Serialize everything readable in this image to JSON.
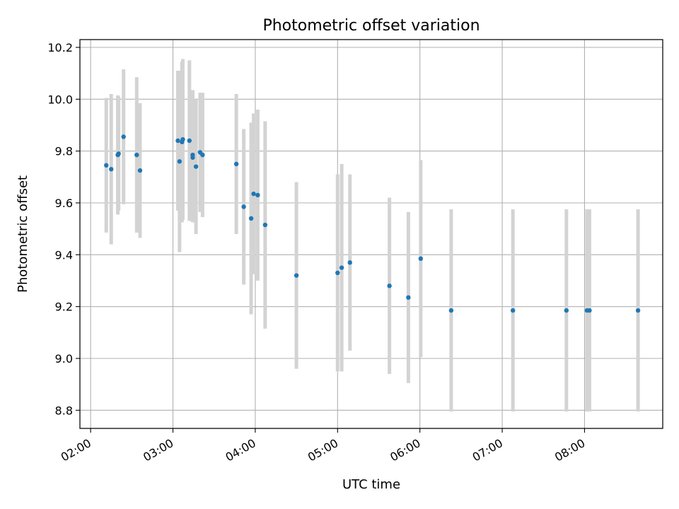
{
  "chart_data": {
    "type": "scatter",
    "title": "Photometric offset variation",
    "xlabel": "UTC time",
    "ylabel": "Photometric offset",
    "x_unit": "hours UTC",
    "xlim": [
      1.87,
      8.95
    ],
    "ylim": [
      8.73,
      10.23
    ],
    "grid": true,
    "x_ticks": [
      {
        "value": 2,
        "label": "02:00"
      },
      {
        "value": 3,
        "label": "03:00"
      },
      {
        "value": 4,
        "label": "04:00"
      },
      {
        "value": 5,
        "label": "05:00"
      },
      {
        "value": 6,
        "label": "06:00"
      },
      {
        "value": 7,
        "label": "07:00"
      },
      {
        "value": 8,
        "label": "08:00"
      }
    ],
    "y_ticks": [
      {
        "value": 8.8,
        "label": "8.8"
      },
      {
        "value": 9.0,
        "label": "9.0"
      },
      {
        "value": 9.2,
        "label": "9.2"
      },
      {
        "value": 9.4,
        "label": "9.4"
      },
      {
        "value": 9.6,
        "label": "9.6"
      },
      {
        "value": 9.8,
        "label": "9.8"
      },
      {
        "value": 10.0,
        "label": "10.0"
      },
      {
        "value": 10.2,
        "label": "10.2"
      }
    ],
    "point_color": "#1f77b4",
    "errorbar_color": "#d3d3d3",
    "points": [
      {
        "x": 2.19,
        "y": 9.745,
        "yerr": 0.26
      },
      {
        "x": 2.25,
        "y": 9.73,
        "yerr": 0.29
      },
      {
        "x": 2.33,
        "y": 9.785,
        "yerr": 0.23
      },
      {
        "x": 2.34,
        "y": 9.79,
        "yerr": 0.22
      },
      {
        "x": 2.4,
        "y": 9.855,
        "yerr": 0.26
      },
      {
        "x": 2.56,
        "y": 9.785,
        "yerr": 0.3
      },
      {
        "x": 2.6,
        "y": 9.725,
        "yerr": 0.26
      },
      {
        "x": 3.06,
        "y": 9.84,
        "yerr": 0.27
      },
      {
        "x": 3.08,
        "y": 9.76,
        "yerr": 0.35
      },
      {
        "x": 3.11,
        "y": 9.835,
        "yerr": 0.31
      },
      {
        "x": 3.12,
        "y": 9.845,
        "yerr": 0.31
      },
      {
        "x": 3.2,
        "y": 9.84,
        "yerr": 0.31
      },
      {
        "x": 3.24,
        "y": 9.785,
        "yerr": 0.25
      },
      {
        "x": 3.24,
        "y": 9.775,
        "yerr": 0.25
      },
      {
        "x": 3.28,
        "y": 9.74,
        "yerr": 0.26
      },
      {
        "x": 3.33,
        "y": 9.795,
        "yerr": 0.23
      },
      {
        "x": 3.36,
        "y": 9.785,
        "yerr": 0.24
      },
      {
        "x": 3.77,
        "y": 9.75,
        "yerr": 0.27
      },
      {
        "x": 3.86,
        "y": 9.585,
        "yerr": 0.3
      },
      {
        "x": 3.95,
        "y": 9.54,
        "yerr": 0.37
      },
      {
        "x": 3.98,
        "y": 9.635,
        "yerr": 0.31
      },
      {
        "x": 4.03,
        "y": 9.63,
        "yerr": 0.33
      },
      {
        "x": 4.12,
        "y": 9.515,
        "yerr": 0.4
      },
      {
        "x": 4.5,
        "y": 9.32,
        "yerr": 0.36
      },
      {
        "x": 5.0,
        "y": 9.33,
        "yerr": 0.38
      },
      {
        "x": 5.05,
        "y": 9.35,
        "yerr": 0.4
      },
      {
        "x": 5.15,
        "y": 9.37,
        "yerr": 0.34
      },
      {
        "x": 5.63,
        "y": 9.28,
        "yerr": 0.34
      },
      {
        "x": 5.86,
        "y": 9.235,
        "yerr": 0.33
      },
      {
        "x": 6.01,
        "y": 9.385,
        "yerr": 0.38
      },
      {
        "x": 6.38,
        "y": 9.185,
        "yerr": 0.39
      },
      {
        "x": 7.13,
        "y": 9.185,
        "yerr": 0.39
      },
      {
        "x": 7.78,
        "y": 9.185,
        "yerr": 0.39
      },
      {
        "x": 8.03,
        "y": 9.185,
        "yerr": 0.39
      },
      {
        "x": 8.06,
        "y": 9.185,
        "yerr": 0.39
      },
      {
        "x": 8.65,
        "y": 9.185,
        "yerr": 0.39
      }
    ]
  }
}
